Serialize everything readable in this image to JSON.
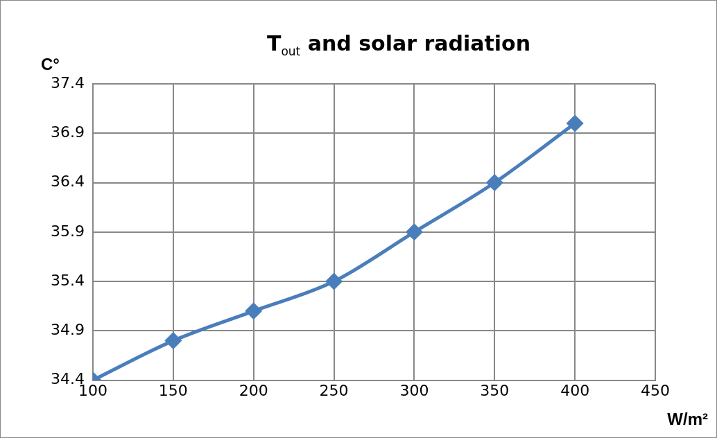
{
  "chart_data": {
    "type": "line",
    "title": "T$_{out}$  and  solar radiation",
    "xlabel": "W/m²",
    "ylabel": "C°",
    "x": [
      100,
      150,
      200,
      250,
      300,
      350,
      400
    ],
    "series": [
      {
        "color": "#4a7ebb",
        "values": [
          34.4,
          34.8,
          35.1,
          35.4,
          35.9,
          36.4,
          37.0
        ]
      }
    ],
    "xlim": [
      100,
      450
    ],
    "xticks": [
      100,
      150,
      200,
      250,
      300,
      350,
      400,
      450
    ],
    "ylim": [
      34.4,
      37.4
    ],
    "yticks": [
      34.4,
      34.9,
      35.4,
      35.9,
      36.4,
      36.9,
      37.4
    ],
    "grid": true,
    "legend": false,
    "marker": "diamond",
    "line_style": "solid"
  }
}
